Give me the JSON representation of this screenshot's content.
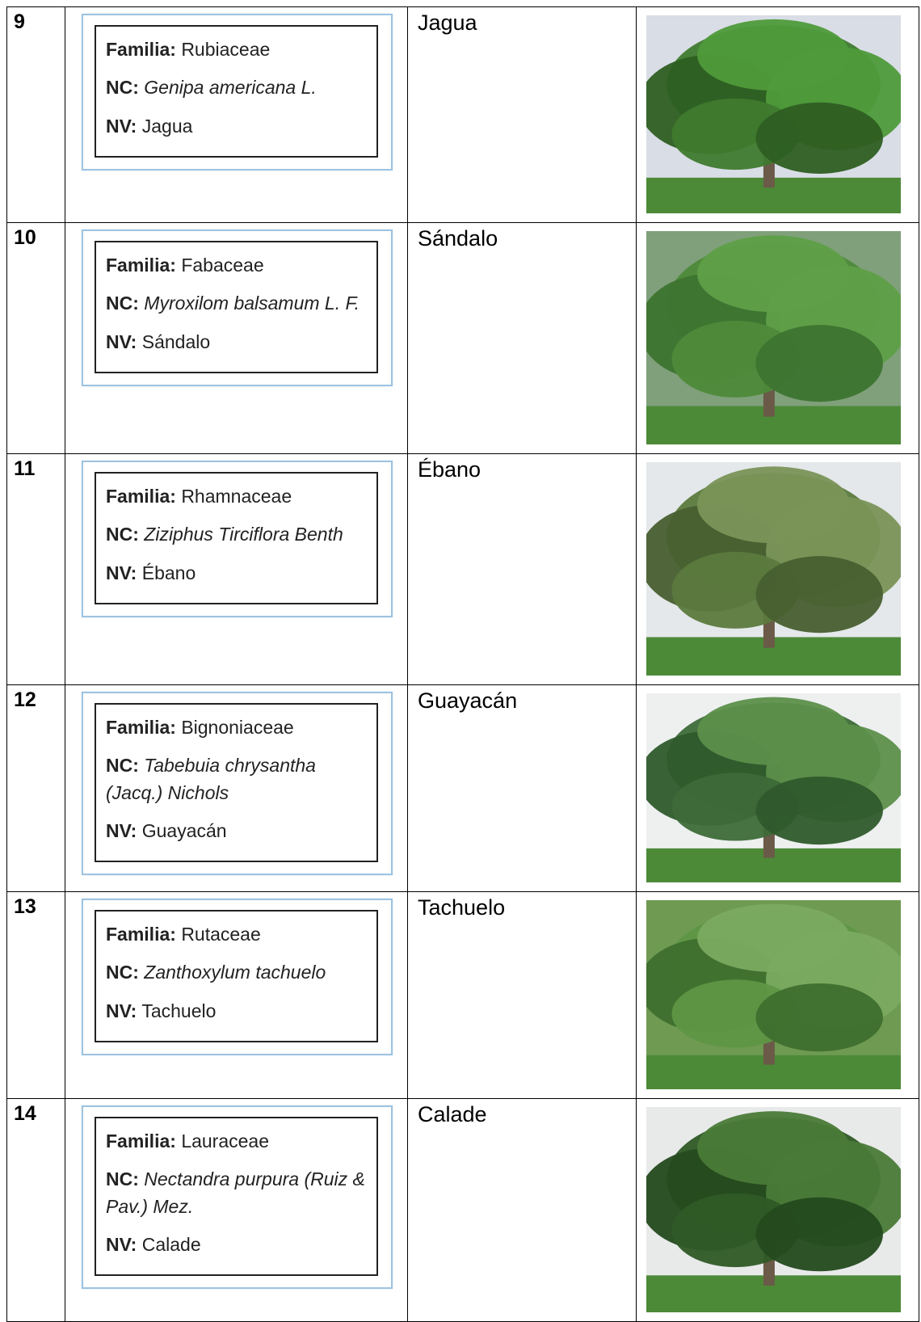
{
  "table": {
    "rows": [
      {
        "number": "9",
        "familia_label": "Familia:",
        "familia": "Rubiaceae",
        "nc_label": "NC:",
        "nc": "Genipa americana L.",
        "nv_label": "NV:",
        "nv": "Jagua",
        "common_name": "Jagua"
      },
      {
        "number": "10",
        "familia_label": "Familia:",
        "familia": "Fabaceae",
        "nc_label": "NC:",
        "nc": "Myroxilom balsamum L. F.",
        "nv_label": "NV:",
        "nv": "Sándalo",
        "common_name": "Sándalo"
      },
      {
        "number": "11",
        "familia_label": "Familia:",
        "familia": "Rhamnaceae",
        "nc_label": "NC:",
        "nc": "Ziziphus Tirciflora Benth",
        "nv_label": "NV:",
        "nv": "Ébano",
        "common_name": "Ébano"
      },
      {
        "number": "12",
        "familia_label": "Familia:",
        "familia": "Bignoniaceae",
        "nc_label": "NC:",
        "nc": "Tabebuia chrysantha (Jacq.) Nichols",
        "nv_label": "NV:",
        "nv": "Guayacán",
        "common_name": "Guayacán"
      },
      {
        "number": "13",
        "familia_label": "Familia:",
        "familia": "Rutaceae",
        "nc_label": "NC:",
        "nc": "Zanthoxylum tachuelo",
        "nv_label": "NV:",
        "nv": "Tachuelo",
        "common_name": "Tachuelo"
      },
      {
        "number": "14",
        "familia_label": "Familia:",
        "familia": "Lauraceae",
        "nc_label": "NC:",
        "nc": "Nectandra purpura (Ruiz & Pav.) Mez.",
        "nv_label": "NV:",
        "nv": "Calade",
        "common_name": "Calade"
      }
    ]
  }
}
